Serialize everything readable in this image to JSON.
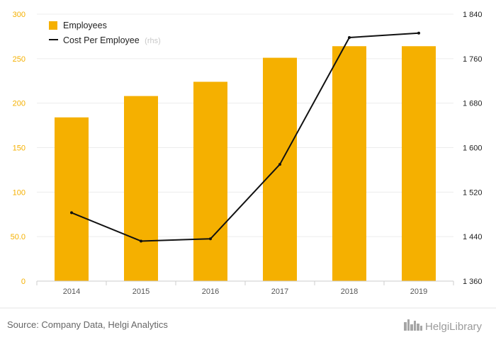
{
  "chart_data": {
    "type": "bar",
    "categories": [
      "2014",
      "2015",
      "2016",
      "2017",
      "2018",
      "2019"
    ],
    "series": [
      {
        "name": "Employees",
        "type": "bar",
        "axis": "left",
        "color": "#f5b000",
        "values": [
          184,
          208,
          224,
          251,
          264,
          264
        ]
      },
      {
        "name": "Cost Per Employee",
        "legend_suffix": "(rhs)",
        "type": "line",
        "axis": "right",
        "color": "#111111",
        "values": [
          1483,
          1432,
          1436,
          1570,
          1798,
          1806
        ]
      }
    ],
    "left_axis": {
      "ylim": [
        0,
        300
      ],
      "ticks": [
        0,
        50,
        100,
        150,
        200,
        250,
        300
      ],
      "tick_labels": [
        "0",
        "50.0",
        "100",
        "150",
        "200",
        "250",
        "300"
      ]
    },
    "right_axis": {
      "ylim": [
        1360,
        1840
      ],
      "ticks": [
        1360,
        1440,
        1520,
        1600,
        1680,
        1760,
        1840
      ],
      "tick_labels": [
        "1 360",
        "1 440",
        "1 520",
        "1 600",
        "1 680",
        "1 760",
        "1 840"
      ]
    },
    "grid": true,
    "legend_position": "top-left"
  },
  "footer": {
    "source": "Source: Company Data, Helgi Analytics",
    "brand": "HelgiLibrary"
  }
}
